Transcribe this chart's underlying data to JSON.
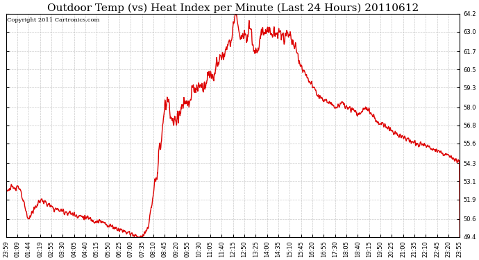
{
  "title": "Outdoor Temp (vs) Heat Index per Minute (Last 24 Hours) 20110612",
  "copyright": "Copyright 2011 Cartronics.com",
  "line_color": "#dd0000",
  "background_color": "#ffffff",
  "grid_color": "#bbbbbb",
  "yticks": [
    49.4,
    50.6,
    51.9,
    53.1,
    54.3,
    55.6,
    56.8,
    58.0,
    59.3,
    60.5,
    61.7,
    63.0,
    64.2
  ],
  "ymin": 49.4,
  "ymax": 64.2,
  "xtick_labels": [
    "23:59",
    "01:09",
    "01:44",
    "02:19",
    "02:55",
    "03:30",
    "04:05",
    "04:40",
    "05:15",
    "05:50",
    "06:25",
    "07:00",
    "07:35",
    "08:10",
    "08:45",
    "09:20",
    "09:55",
    "10:30",
    "11:05",
    "11:40",
    "12:15",
    "12:50",
    "13:25",
    "14:00",
    "14:35",
    "15:10",
    "15:45",
    "16:20",
    "16:55",
    "17:30",
    "18:05",
    "18:40",
    "19:15",
    "19:50",
    "20:25",
    "21:00",
    "21:35",
    "22:10",
    "22:45",
    "23:20",
    "23:55"
  ],
  "title_fontsize": 11,
  "copyright_fontsize": 6,
  "tick_fontsize": 6,
  "line_width": 1.0
}
